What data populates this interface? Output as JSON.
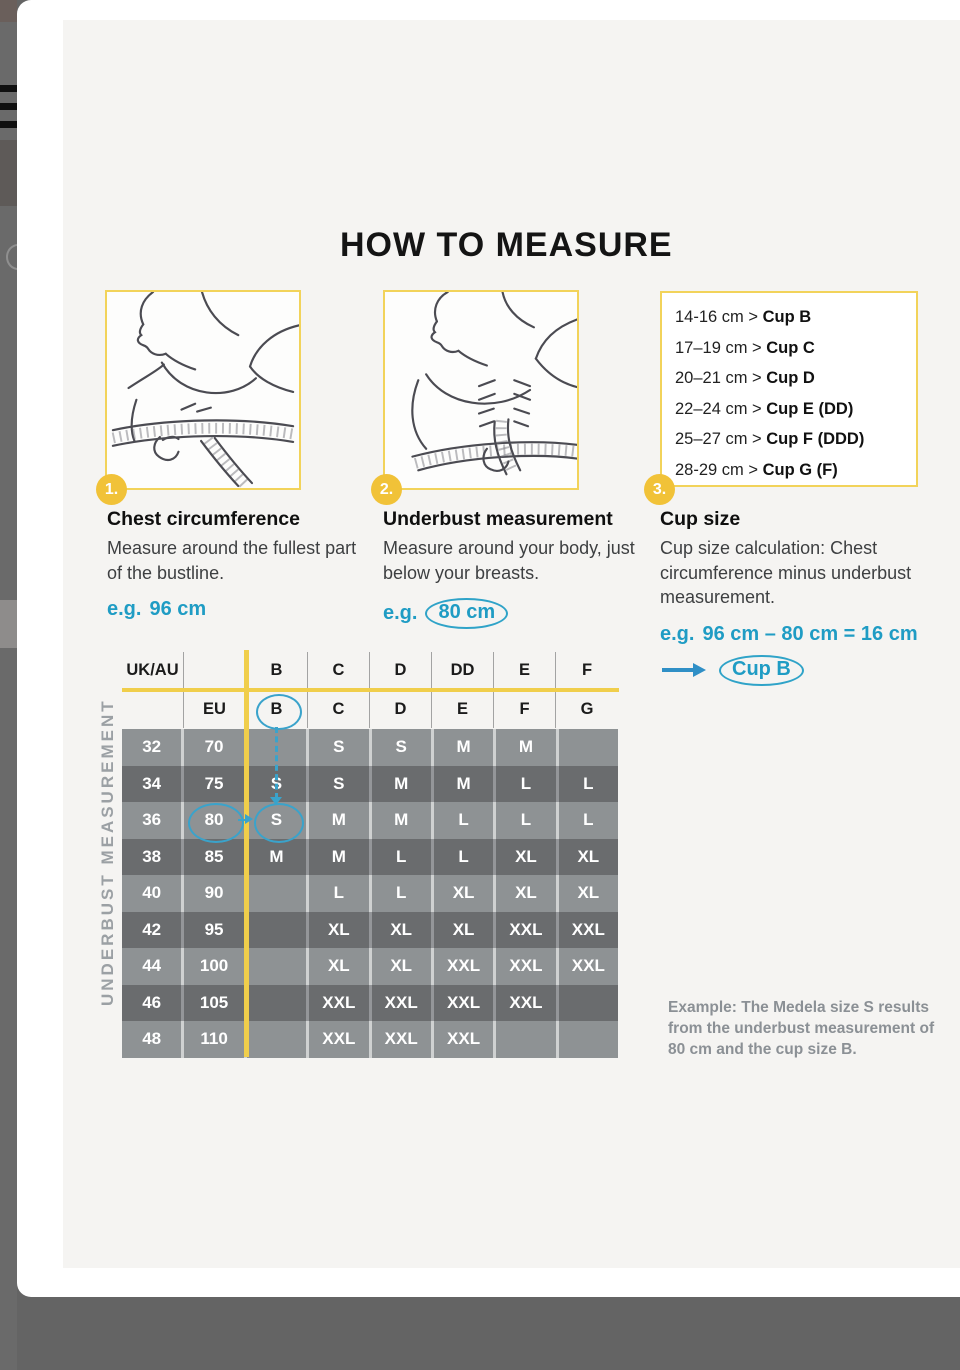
{
  "title": "HOW TO MEASURE",
  "steps": [
    {
      "number": "1.",
      "heading": "Chest circumference",
      "body": "Measure around the fullest part of the bustline.",
      "eg_prefix": "e.g.",
      "eg_value": "96 cm"
    },
    {
      "number": "2.",
      "heading": "Underbust measurement",
      "body": "Measure around your body, just below your breasts.",
      "eg_prefix": "e.g.",
      "eg_value": "80 cm"
    },
    {
      "number": "3.",
      "heading": "Cup size",
      "body": "Cup size calculation: Chest circumference minus underbust measurement.",
      "eg_prefix": "e.g.",
      "eg_value": "96 cm – 80 cm = 16 cm",
      "result": "Cup B"
    }
  ],
  "cup_chart": [
    {
      "range": "14-16 cm",
      "cup": "Cup B"
    },
    {
      "range": "17–19 cm",
      "cup": "Cup C"
    },
    {
      "range": "20–21 cm",
      "cup": "Cup D"
    },
    {
      "range": "22–24 cm",
      "cup": "Cup E (DD)"
    },
    {
      "range": "25–27 cm",
      "cup": "Cup F (DDD)"
    },
    {
      "range": "28-29 cm",
      "cup": "Cup G (F)"
    }
  ],
  "size_table": {
    "side_label": "UNDERBUST MEASUREMENT",
    "header_row1": [
      "UK/AU",
      "",
      "B",
      "C",
      "D",
      "DD",
      "E",
      "F"
    ],
    "header_row2": [
      "",
      "EU",
      "B",
      "C",
      "D",
      "E",
      "F",
      "G"
    ],
    "rows": [
      {
        "ukau": "32",
        "eu": "70",
        "cells": [
          "",
          "S",
          "S",
          "M",
          "M",
          ""
        ]
      },
      {
        "ukau": "34",
        "eu": "75",
        "cells": [
          "S",
          "S",
          "M",
          "M",
          "L",
          "L"
        ]
      },
      {
        "ukau": "36",
        "eu": "80",
        "cells": [
          "S",
          "M",
          "M",
          "L",
          "L",
          "L"
        ]
      },
      {
        "ukau": "38",
        "eu": "85",
        "cells": [
          "M",
          "M",
          "L",
          "L",
          "XL",
          "XL"
        ]
      },
      {
        "ukau": "40",
        "eu": "90",
        "cells": [
          "",
          "L",
          "L",
          "XL",
          "XL",
          "XL"
        ]
      },
      {
        "ukau": "42",
        "eu": "95",
        "cells": [
          "",
          "XL",
          "XL",
          "XL",
          "XXL",
          "XXL"
        ]
      },
      {
        "ukau": "44",
        "eu": "100",
        "cells": [
          "",
          "XL",
          "XL",
          "XXL",
          "XXL",
          "XXL"
        ]
      },
      {
        "ukau": "46",
        "eu": "105",
        "cells": [
          "",
          "XXL",
          "XXL",
          "XXL",
          "XXL",
          ""
        ]
      },
      {
        "ukau": "48",
        "eu": "110",
        "cells": [
          "",
          "XXL",
          "XXL",
          "XXL",
          "",
          ""
        ]
      }
    ],
    "highlight": {
      "header_cup": "B",
      "eu_value": "80",
      "result_cell": "S"
    }
  },
  "example_note": "Example: The Medela size S results from the underbust measurement of 80 cm and the cup size B.",
  "colors": {
    "accent_yellow": "#f0ce4b",
    "accent_cyan": "#3aa3cb",
    "row_light": "#8e9294",
    "row_dark": "#6a6c6e",
    "badge_yellow": "#f1c238",
    "panel_bg": "#f5f4f2"
  }
}
